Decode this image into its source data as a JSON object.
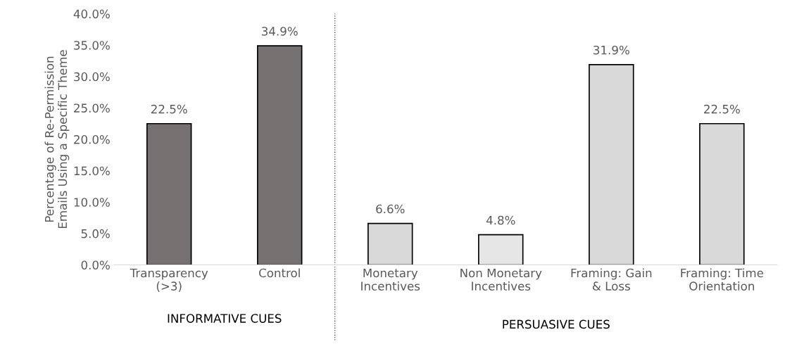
{
  "chart_data": {
    "type": "bar",
    "ylabel": "Percentage of Re-Permission\nEmails Using a Specific Theme",
    "categories": [
      "Transparency\n(>3)",
      "Control",
      "Monetary\nIncentives",
      "Non Monetary\nIncentives",
      "Framing: Gain\n& Loss",
      "Framing: Time\nOrientation"
    ],
    "values": [
      22.5,
      34.9,
      6.6,
      4.8,
      31.9,
      22.5
    ],
    "value_labels": [
      "22.5%",
      "34.9%",
      "6.6%",
      "4.8%",
      "31.9%",
      "22.5%"
    ],
    "colors": [
      "#767171",
      "#767171",
      "#d9d9d9",
      "#e7e6e6",
      "#d9d9d9",
      "#d9d9d9"
    ],
    "ylim": [
      0,
      40
    ],
    "yticks": [
      {
        "value": 0,
        "label": "0.0%"
      },
      {
        "value": 5,
        "label": "5.0%"
      },
      {
        "value": 10,
        "label": "10.0%"
      },
      {
        "value": 15,
        "label": "15.0%"
      },
      {
        "value": 20,
        "label": "20.0%"
      },
      {
        "value": 25,
        "label": "25.0%"
      },
      {
        "value": 30,
        "label": "30.0%"
      },
      {
        "value": 35,
        "label": "35.0%"
      },
      {
        "value": 40,
        "label": "40.0%"
      }
    ],
    "annotations": [
      "INFORMATIVE CUES",
      "PERSUASIVE CUES"
    ],
    "grid": false
  }
}
